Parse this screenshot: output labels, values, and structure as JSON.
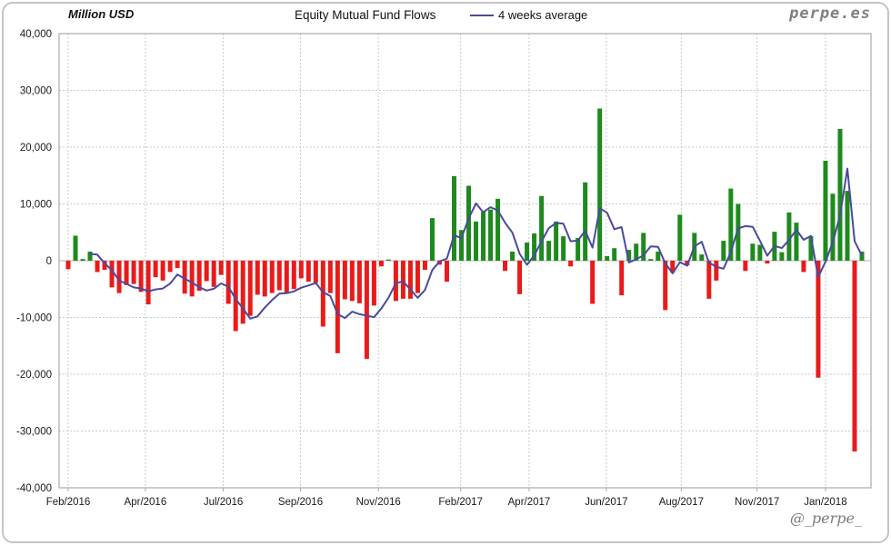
{
  "header": {
    "y_axis_title": "Million USD",
    "title": "Equity Mutual Fund Flows",
    "legend_label": "4 weeks average",
    "brand": "perpe.es"
  },
  "footer": {
    "handle": "@_perpe_"
  },
  "colors": {
    "positive_bar": "#1e8a1e",
    "negative_bar": "#e81b1b",
    "average_line": "#4a4a9c",
    "grid": "#c9c9c9",
    "zero_line": "#b0b0b0",
    "plot_border": "#a9a9a9",
    "tick_text": "#1a1a1a",
    "brand_gray": "#7f7f7f"
  },
  "chart_data": {
    "type": "bar",
    "title": "Equity Mutual Fund Flows",
    "ylabel": "Million USD",
    "frequency": "weekly",
    "ylim": [
      -40000,
      40000
    ],
    "grid": true,
    "legend_position": "top",
    "y_axis": {
      "tick_values": [
        40000,
        30000,
        20000,
        10000,
        0,
        -10000,
        -20000,
        -30000,
        -40000
      ],
      "tick_labels": [
        "40,000",
        "30,000",
        "20,000",
        "10,000",
        "0",
        "-10,000",
        "-20,000",
        "-30,000",
        "-40,000"
      ]
    },
    "x_axis": {
      "tick_labels": [
        "Feb/2016",
        "Apr/2016",
        "Jul/2016",
        "Sep/2016",
        "Nov/2016",
        "Feb/2017",
        "Apr/2017",
        "Jun/2017",
        "Aug/2017",
        "Nov/2017",
        "Jan/2018"
      ],
      "tick_indices": [
        0,
        10.6,
        21.3,
        31.9,
        42.6,
        53.9,
        63.3,
        73.9,
        84.2,
        94.6,
        104
      ]
    },
    "series": [
      {
        "name": "Weekly equity mutual fund flows (Million USD)",
        "type": "bar",
        "values": [
          -1500,
          4400,
          300,
          1600,
          -2000,
          -1600,
          -4700,
          -5700,
          -4300,
          -4100,
          -5500,
          -7700,
          -2900,
          -3500,
          -2000,
          -1300,
          -5800,
          -6300,
          -5300,
          -3600,
          -4600,
          -2500,
          -7600,
          -12400,
          -11100,
          -9700,
          -6000,
          -6300,
          -5700,
          -5200,
          -5700,
          -5000,
          -3100,
          -3700,
          -3900,
          -11600,
          -5700,
          -16300,
          -6800,
          -7100,
          -7500,
          -17300,
          -7900,
          -1000,
          200,
          -7100,
          -6700,
          -6700,
          -5700,
          -1600,
          7500,
          -700,
          -3700,
          14900,
          5400,
          13200,
          6900,
          8600,
          9000,
          10900,
          -1800,
          1600,
          -5900,
          3200,
          4800,
          11400,
          3500,
          6900,
          4300,
          -1000,
          4000,
          13800,
          -7600,
          26800,
          800,
          2200,
          -6100,
          1900,
          3000,
          4900,
          300,
          1600,
          -8700,
          -2100,
          8100,
          -800,
          4900,
          1100,
          -6700,
          -3500,
          3500,
          12700,
          10000,
          -1800,
          3000,
          2800,
          -500,
          5100,
          1500,
          8500,
          6700,
          -2000,
          4300,
          -20600,
          17600,
          11800,
          23200,
          12300,
          -33600,
          1600
        ]
      },
      {
        "name": "4 weeks average",
        "type": "line",
        "derived_from": "trailing 4-week mean of the weekly bar values"
      }
    ]
  }
}
